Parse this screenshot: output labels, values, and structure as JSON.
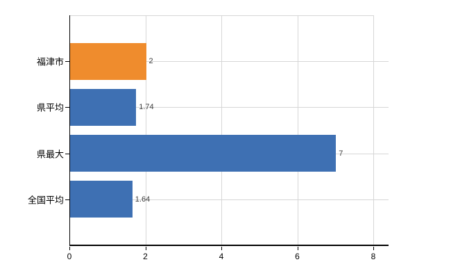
{
  "chart_data": {
    "type": "bar",
    "orientation": "horizontal",
    "title": "",
    "categories": [
      "福津市",
      "県平均",
      "県最大",
      "全国平均"
    ],
    "values": [
      2,
      1.74,
      7,
      1.64
    ],
    "value_labels": [
      "2",
      "1.74",
      "7",
      "1.64"
    ],
    "bar_colors": [
      "#ef8c2d",
      "#3e70b3",
      "#3e70b3",
      "#3e70b3"
    ],
    "highlight_color": "#ef8c2d",
    "series_color": "#3e70b3",
    "x_tick_labels": [
      "0",
      "2",
      "4",
      "6",
      "8"
    ],
    "x_tick_values": [
      0,
      2,
      4,
      6,
      8
    ],
    "xlim": [
      0,
      8
    ],
    "grid": true,
    "gridline_color": "#d6d6d6",
    "axis_color": "#000000",
    "value_label_color": "#3d3d3d",
    "legend": "none",
    "background": "#ffffff"
  }
}
